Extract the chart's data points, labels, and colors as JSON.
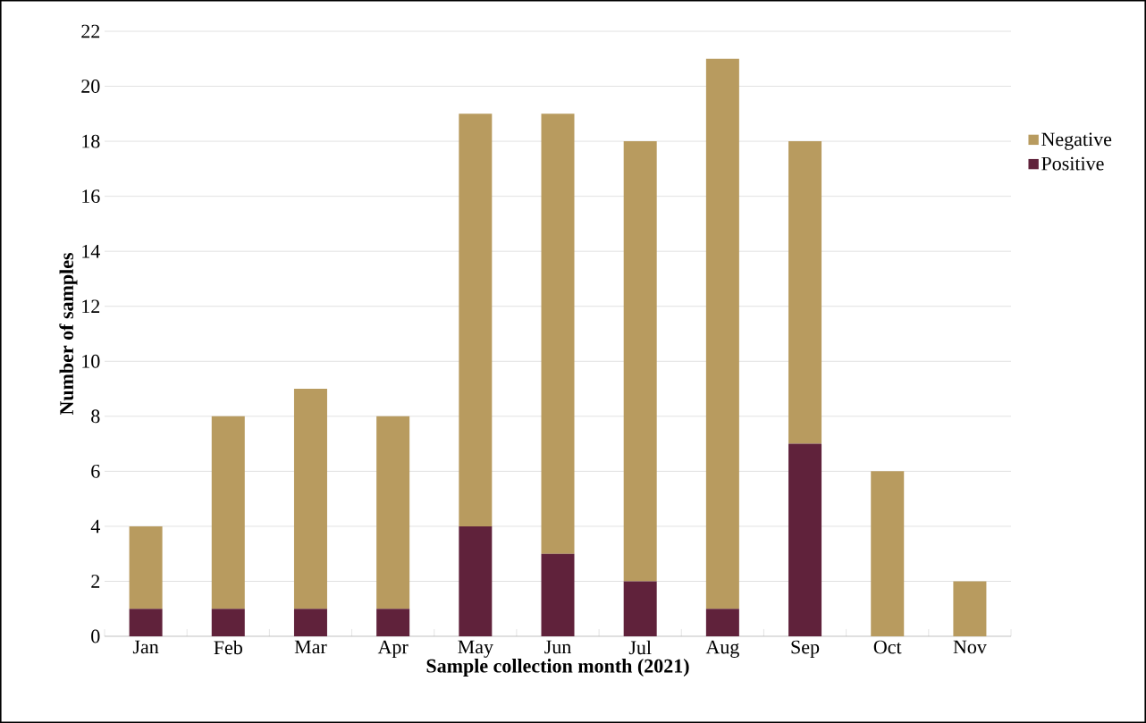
{
  "chart_data": {
    "type": "bar",
    "stacked": true,
    "xlabel": "Sample collection month (2021)",
    "ylabel": "Number of samples",
    "categories": [
      "Jan",
      "Feb",
      "Mar",
      "Apr",
      "May",
      "Jun",
      "Jul",
      "Aug",
      "Sep",
      "Oct",
      "Nov"
    ],
    "series": [
      {
        "name": "Positive",
        "color": "#60223b",
        "values": [
          1,
          1,
          1,
          1,
          4,
          3,
          2,
          1,
          7,
          0,
          0
        ]
      },
      {
        "name": "Negative",
        "color": "#b89b5f",
        "values": [
          3,
          7,
          8,
          7,
          15,
          16,
          16,
          20,
          11,
          6,
          2
        ]
      }
    ],
    "ylim": [
      0,
      22
    ],
    "yticks": [
      0,
      2,
      4,
      6,
      8,
      10,
      12,
      14,
      16,
      18,
      20,
      22
    ],
    "grid": "y",
    "legend": "right"
  }
}
